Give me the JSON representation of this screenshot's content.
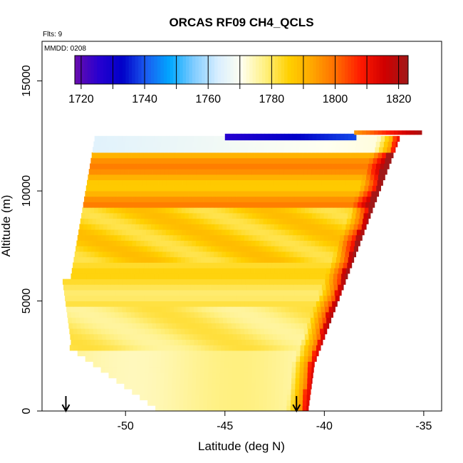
{
  "chart_data": {
    "type": "heatmap",
    "title": "ORCAS RF09 CH4_QCLS",
    "annotation_flts": "Flts: 9",
    "annotation_mmdd": "MMDD: 0208",
    "xlabel": "Latitude (deg N)",
    "ylabel": "Altitude (m)",
    "xlim": [
      -54.2,
      -34.1
    ],
    "ylim": [
      0,
      16800
    ],
    "x_ticks": [
      -50,
      -45,
      -40,
      -35
    ],
    "x_tick_labels": [
      "-50",
      "-45",
      "-40",
      "-35"
    ],
    "y_ticks": [
      0,
      5000,
      10000,
      15000
    ],
    "y_tick_labels": [
      "0",
      "5000",
      "10000",
      "15000"
    ],
    "colorbar": {
      "min": 1718,
      "max": 1823,
      "ticks": [
        1720,
        1740,
        1760,
        1780,
        1800,
        1820
      ],
      "tick_labels": [
        "1720",
        "1740",
        "1760",
        "1780",
        "1800",
        "1820"
      ],
      "colors": [
        "#6a0dad",
        "#2800d0",
        "#0000c8",
        "#1a5cf0",
        "#00a8ff",
        "#80ccff",
        "#d8eeff",
        "#fffff0",
        "#fff080",
        "#ffd000",
        "#ffa500",
        "#ff6a00",
        "#ff1a00",
        "#d00000",
        "#a01818"
      ]
    },
    "arrows_latitude": [
      -53.0,
      -41.4
    ],
    "grid": false
  },
  "colors": {
    "background": "#ffffff",
    "frame": "#000000"
  }
}
